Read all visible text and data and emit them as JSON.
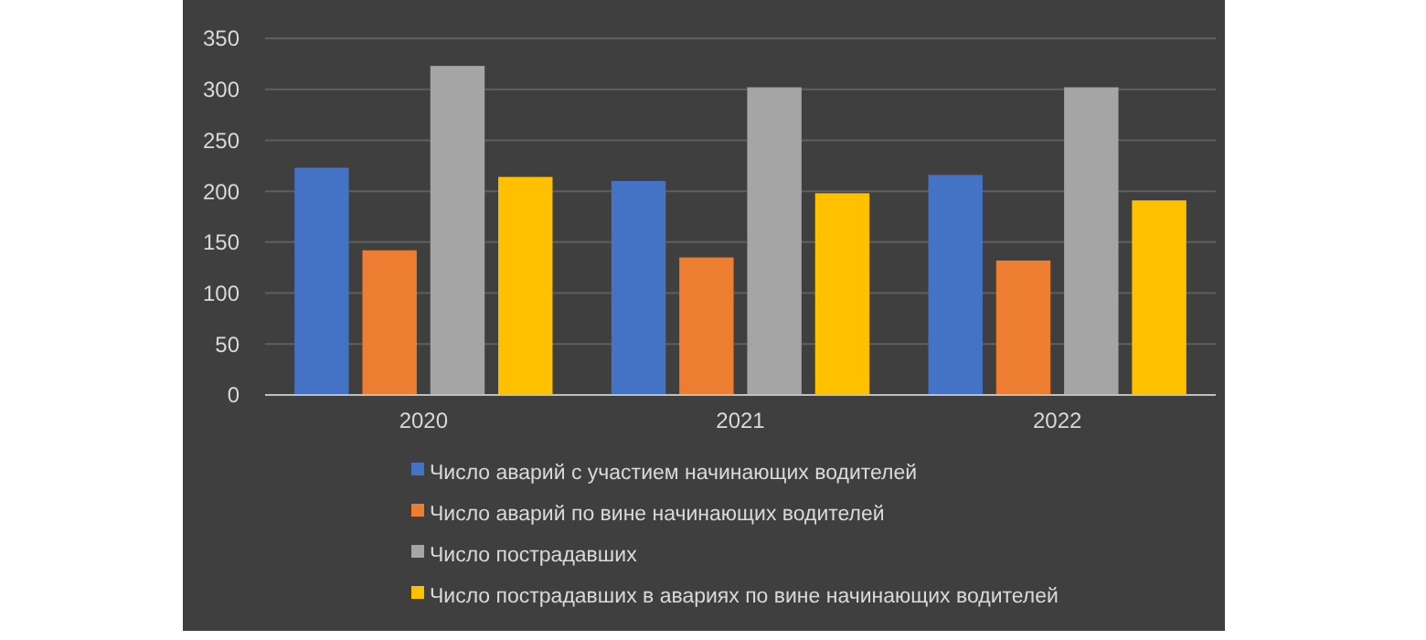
{
  "chart_data": {
    "type": "bar",
    "categories": [
      "2020",
      "2021",
      "2022"
    ],
    "series": [
      {
        "name": "Число аварий с участием начинающих водителей",
        "color": "#4472c4",
        "values": [
          223,
          210,
          216
        ]
      },
      {
        "name": "Число аварий по вине начинающих водителей",
        "color": "#ed7d31",
        "values": [
          142,
          135,
          132
        ]
      },
      {
        "name": "Число пострадавших",
        "color": "#a5a5a5",
        "values": [
          323,
          302,
          302
        ]
      },
      {
        "name": "Число пострадавших в авариях по вине начинающих водителей",
        "color": "#ffc000",
        "values": [
          214,
          198,
          191
        ]
      }
    ],
    "ylim": [
      0,
      350
    ],
    "yticks": [
      0,
      50,
      100,
      150,
      200,
      250,
      300,
      350
    ],
    "grid": "y",
    "legend": "bottom"
  }
}
